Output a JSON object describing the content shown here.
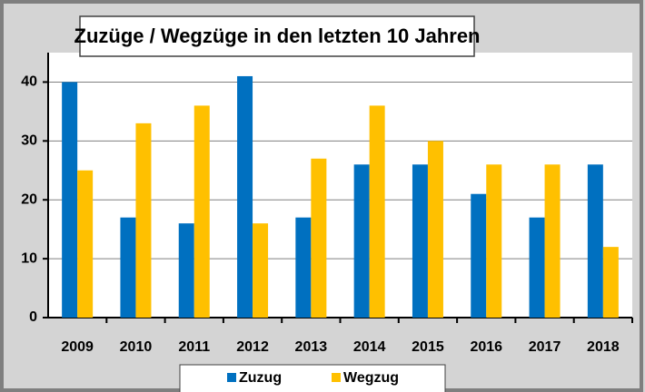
{
  "chart_data": {
    "type": "bar",
    "title": "Zuzüge / Wegzüge in den letzten 10 Jahren",
    "categories": [
      "2009",
      "2010",
      "2011",
      "2012",
      "2013",
      "2014",
      "2015",
      "2016",
      "2017",
      "2018"
    ],
    "series": [
      {
        "name": "Zuzug",
        "color": "#0070c0",
        "values": [
          40,
          17,
          16,
          41,
          17,
          26,
          26,
          21,
          17,
          26
        ]
      },
      {
        "name": "Wegzug",
        "color": "#ffc000",
        "values": [
          25,
          33,
          36,
          16,
          27,
          36,
          30,
          26,
          26,
          12
        ]
      }
    ],
    "ylim": [
      0,
      45
    ],
    "yticks": [
      0,
      10,
      20,
      30,
      40
    ],
    "grid": true,
    "legend": "bottom"
  }
}
